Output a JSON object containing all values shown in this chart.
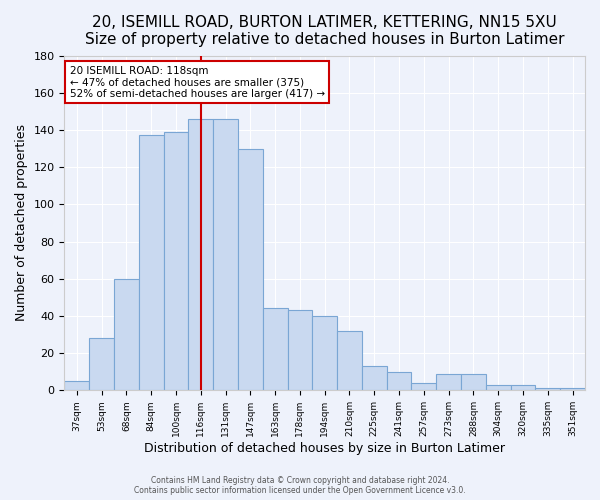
{
  "title": "20, ISEMILL ROAD, BURTON LATIMER, KETTERING, NN15 5XU",
  "subtitle": "Size of property relative to detached houses in Burton Latimer",
  "xlabel": "Distribution of detached houses by size in Burton Latimer",
  "ylabel": "Number of detached properties",
  "categories": [
    "37sqm",
    "53sqm",
    "68sqm",
    "84sqm",
    "100sqm",
    "116sqm",
    "131sqm",
    "147sqm",
    "163sqm",
    "178sqm",
    "194sqm",
    "210sqm",
    "225sqm",
    "241sqm",
    "257sqm",
    "273sqm",
    "288sqm",
    "304sqm",
    "320sqm",
    "335sqm",
    "351sqm"
  ],
  "values": [
    5,
    28,
    60,
    137,
    139,
    146,
    146,
    130,
    44,
    43,
    40,
    32,
    13,
    10,
    4,
    9,
    9,
    3,
    3,
    1,
    1
  ],
  "bar_color": "#c9d9f0",
  "bar_edge_color": "#7aa6d4",
  "property_line_idx": 5,
  "property_line_label": "20 ISEMILL ROAD: 118sqm",
  "annotation_line1": "← 47% of detached houses are smaller (375)",
  "annotation_line2": "52% of semi-detached houses are larger (417) →",
  "annotation_box_color": "#ffffff",
  "annotation_box_edge_color": "#cc0000",
  "property_line_color": "#cc0000",
  "ylim": [
    0,
    180
  ],
  "yticks": [
    0,
    20,
    40,
    60,
    80,
    100,
    120,
    140,
    160,
    180
  ],
  "title_fontsize": 11,
  "xlabel_fontsize": 9,
  "ylabel_fontsize": 9,
  "footer1": "Contains HM Land Registry data © Crown copyright and database right 2024.",
  "footer2": "Contains public sector information licensed under the Open Government Licence v3.0.",
  "background_color": "#eef2fb",
  "plot_background_color": "#eef2fb"
}
